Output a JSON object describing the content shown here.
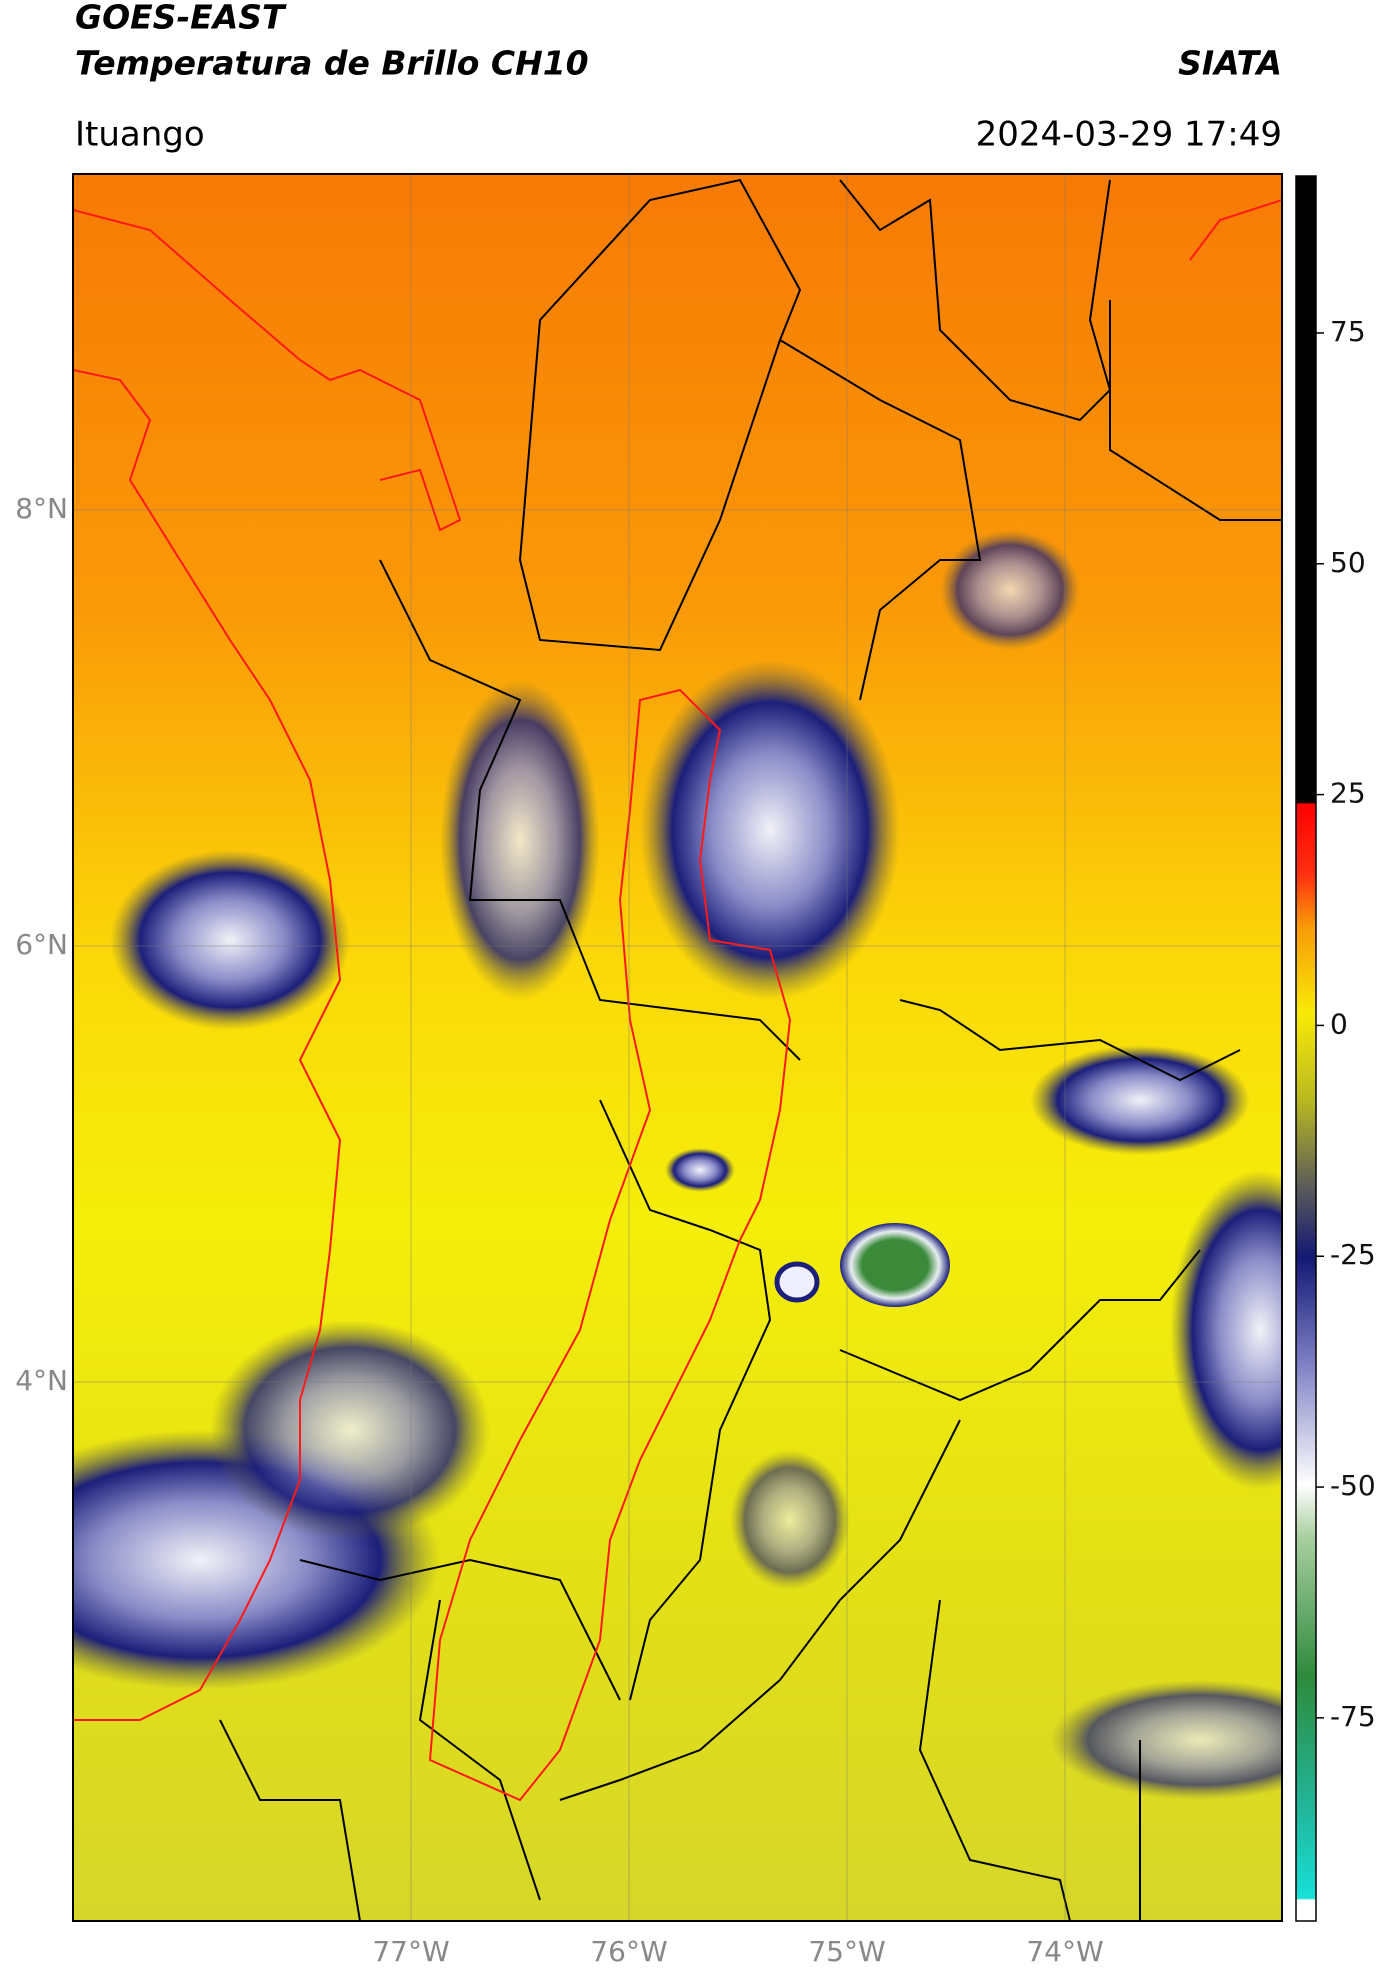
{
  "header": {
    "title_line1": "GOES-EAST",
    "title_line2": "Temperatura de Brillo CH10",
    "agency": "SIATA",
    "location": "Ituango",
    "timestamp": "2024-03-29 17:49"
  },
  "map": {
    "lat_labels": [
      "8°N",
      "6°N",
      "4°N"
    ],
    "lon_labels": [
      "77°W",
      "76°W",
      "75°W",
      "74°W"
    ]
  },
  "colorbar": {
    "range": [
      -97,
      92
    ],
    "ticks": [
      75,
      50,
      25,
      0,
      -25,
      -50,
      -75
    ]
  }
}
